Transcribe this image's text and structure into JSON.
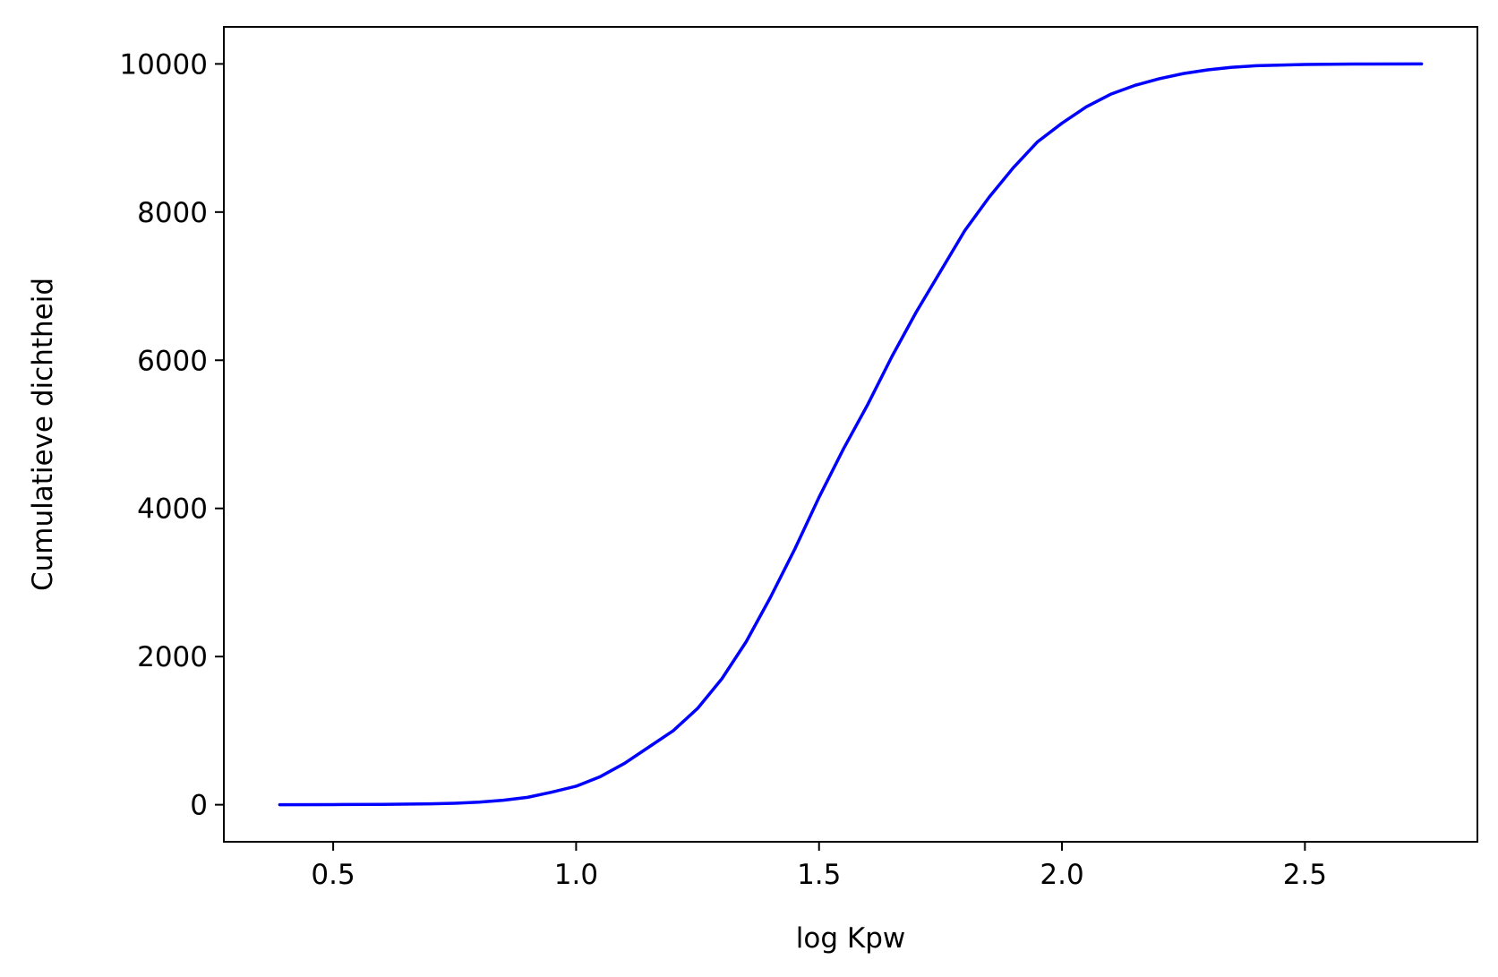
{
  "chart_data": {
    "type": "line",
    "title": "",
    "xlabel": "log Kpw",
    "ylabel": "Cumulatieve dichtheid",
    "xlim": [
      0.275,
      2.855
    ],
    "ylim": [
      -500,
      10500
    ],
    "xticks": [
      0.5,
      1.0,
      1.5,
      2.0,
      2.5
    ],
    "xtick_labels": [
      "0.5",
      "1.0",
      "1.5",
      "2.0",
      "2.5"
    ],
    "yticks": [
      0,
      2000,
      4000,
      6000,
      8000,
      10000
    ],
    "ytick_labels": [
      "0",
      "2000",
      "4000",
      "6000",
      "8000",
      "10000"
    ],
    "grid": false,
    "legend": "none",
    "series": [
      {
        "color": "#0000ff",
        "x": [
          0.39,
          0.5,
          0.6,
          0.7,
          0.75,
          0.8,
          0.85,
          0.9,
          0.95,
          1.0,
          1.05,
          1.1,
          1.15,
          1.2,
          1.25,
          1.3,
          1.35,
          1.4,
          1.45,
          1.5,
          1.55,
          1.6,
          1.65,
          1.7,
          1.75,
          1.8,
          1.85,
          1.9,
          1.95,
          2.0,
          2.05,
          2.1,
          2.15,
          2.2,
          2.25,
          2.3,
          2.35,
          2.4,
          2.5,
          2.6,
          2.74
        ],
        "y": [
          0,
          2,
          5,
          12,
          20,
          35,
          60,
          100,
          170,
          250,
          380,
          560,
          780,
          1000,
          1300,
          1700,
          2200,
          2800,
          3450,
          4150,
          4800,
          5400,
          6050,
          6650,
          7200,
          7750,
          8200,
          8600,
          8950,
          9200,
          9420,
          9590,
          9710,
          9800,
          9870,
          9920,
          9955,
          9975,
          9992,
          9998,
          10000
        ]
      }
    ]
  }
}
